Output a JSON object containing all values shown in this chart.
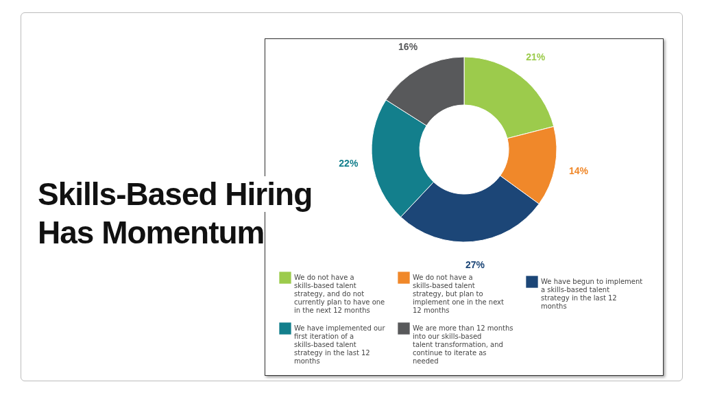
{
  "chart_data": {
    "type": "donut",
    "title": "Skills-Based Hiring Has Momentum",
    "categories": [
      "We do not have a skills-based talent strategy, and do not currently plan to have one in the next 12 months",
      "We do not have a skills-based talent strategy, but plan to implement one in the next 12 months",
      "We have begun to implement a skills-based talent strategy in the last 12 months",
      "We have implemented our first iteration of a skills-based talent strategy in the last 12 months",
      "We are more than 12 months into our skills-based talent transformation, and continue to iterate as needed"
    ],
    "values": [
      21,
      14,
      27,
      22,
      16
    ],
    "colors": [
      "#9ccb4c",
      "#f0882a",
      "#1c4677",
      "#137f8c",
      "#58595b"
    ],
    "value_labels": [
      "21%",
      "14%",
      "27%",
      "22%",
      "16%"
    ],
    "legend": "bottom"
  }
}
